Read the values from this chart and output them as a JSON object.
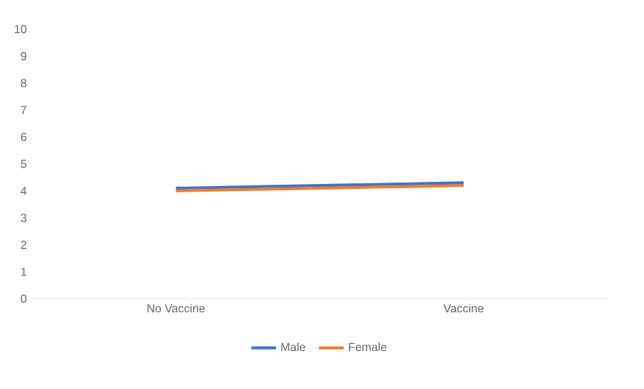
{
  "chart_data": {
    "type": "line",
    "categories": [
      "No Vaccine",
      "Vaccine"
    ],
    "series": [
      {
        "name": "Male",
        "color": "#4472c4",
        "values": [
          4.1,
          4.3
        ]
      },
      {
        "name": "Female",
        "color": "#ed7d31",
        "values": [
          4.0,
          4.2
        ]
      }
    ],
    "ylim": [
      0,
      10
    ],
    "yticks": [
      0,
      1,
      2,
      3,
      4,
      5,
      6,
      7,
      8,
      9,
      10
    ],
    "grid": false,
    "legend": "bottom",
    "marker": "none",
    "line_style": "solid"
  }
}
